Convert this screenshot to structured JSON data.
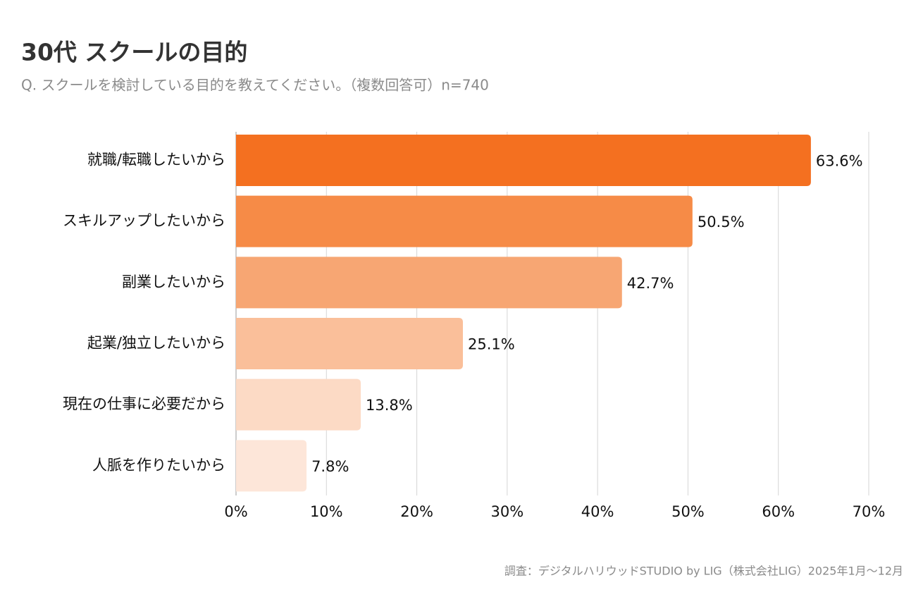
{
  "chart_data": {
    "type": "hbar",
    "title": "30代 スクールの目的",
    "subtitle": "Q. スクールを検討している目的を教えてください。（複数回答可）n=740",
    "source": "調査：デジタルハリウッドSTUDIO by LIG（株式会社LIG）2025年1月〜12月",
    "categories": [
      "就職/転職したいから",
      "スキルアップしたいから",
      "副業したいから",
      "起業/独立したいから",
      "現在の仕事に必要だから",
      "人脈を作りたいから"
    ],
    "values": [
      63.6,
      50.5,
      42.7,
      25.1,
      13.8,
      7.8
    ],
    "value_labels": [
      "63.6%",
      "50.5%",
      "42.7%",
      "25.1%",
      "13.8%",
      "7.8%"
    ],
    "colors": [
      "#f47020",
      "#f68b47",
      "#f7a673",
      "#fabf9a",
      "#fcdac5",
      "#fde6d9"
    ],
    "xlim": [
      0,
      70
    ],
    "xticks": [
      {
        "value": 0,
        "label": "0%"
      },
      {
        "value": 10,
        "label": "10%"
      },
      {
        "value": 20,
        "label": "20%"
      },
      {
        "value": 30,
        "label": "30%"
      },
      {
        "value": 40,
        "label": "40%"
      },
      {
        "value": 50,
        "label": "50%"
      },
      {
        "value": 60,
        "label": "60%"
      },
      {
        "value": 70,
        "label": "70%"
      }
    ],
    "grid": true
  }
}
